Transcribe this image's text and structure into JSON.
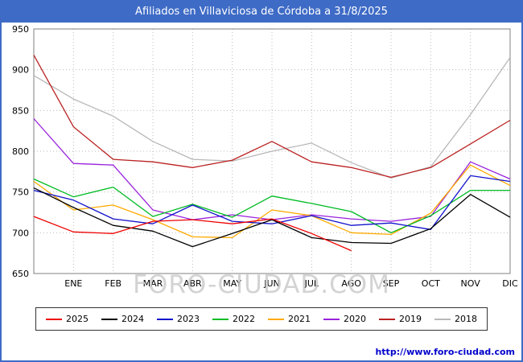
{
  "title": "Afiliados en Villaviciosa de Córdoba a 31/8/2025",
  "watermark": "FORO-CIUDAD.COM",
  "footer": {
    "url": "http://www.foro-ciudad.com"
  },
  "colors": {
    "frame_blue": "#3e6bc6",
    "link_blue": "#0000cc",
    "grid_gray": "#bbbbbb",
    "plot_border_gray": "#808080",
    "watermark_gray": "#c9c9c9"
  },
  "chart_data": {
    "type": "line",
    "title": "Afiliados en Villaviciosa de Córdoba a 31/8/2025",
    "xlabel": "",
    "ylabel": "",
    "ylim": [
      650,
      950
    ],
    "y_ticks": [
      650,
      700,
      750,
      800,
      850,
      900,
      950
    ],
    "grid": true,
    "legend_position": "bottom",
    "x_labels": [
      "",
      "ENE",
      "FEB",
      "MAR",
      "ABR",
      "MAY",
      "JUN",
      "JUL",
      "AGO",
      "SEP",
      "OCT",
      "NOV",
      "DIC"
    ],
    "series": [
      {
        "name": "2025",
        "color": "#ee0000",
        "values": [
          720,
          701,
          699,
          714,
          716,
          711,
          717,
          699,
          678,
          null,
          null,
          null,
          null
        ]
      },
      {
        "name": "2024",
        "color": "#000000",
        "values": [
          755,
          731,
          709,
          702,
          683,
          699,
          716,
          694,
          688,
          687,
          705,
          747,
          719
        ]
      },
      {
        "name": "2023",
        "color": "#1111cc",
        "values": [
          752,
          740,
          717,
          711,
          734,
          714,
          711,
          721,
          709,
          712,
          704,
          770,
          763
        ]
      },
      {
        "name": "2022",
        "color": "#00bb22",
        "values": [
          766,
          744,
          756,
          720,
          735,
          719,
          745,
          736,
          726,
          700,
          721,
          752,
          752
        ]
      },
      {
        "name": "2021",
        "color": "#ffaa00",
        "values": [
          763,
          728,
          734,
          716,
          695,
          694,
          728,
          721,
          700,
          698,
          724,
          783,
          758
        ]
      },
      {
        "name": "2020",
        "color": "#9922dd",
        "values": [
          840,
          785,
          783,
          728,
          716,
          722,
          716,
          722,
          717,
          714,
          720,
          787,
          766
        ]
      },
      {
        "name": "2019",
        "color": "#bb2222",
        "values": [
          918,
          830,
          790,
          787,
          780,
          789,
          812,
          787,
          780,
          768,
          780,
          809,
          838
        ]
      },
      {
        "name": "2018",
        "color": "#b8b8b8",
        "values": [
          893,
          864,
          843,
          812,
          790,
          788,
          800,
          810,
          786,
          767,
          781,
          845,
          915
        ]
      }
    ]
  }
}
